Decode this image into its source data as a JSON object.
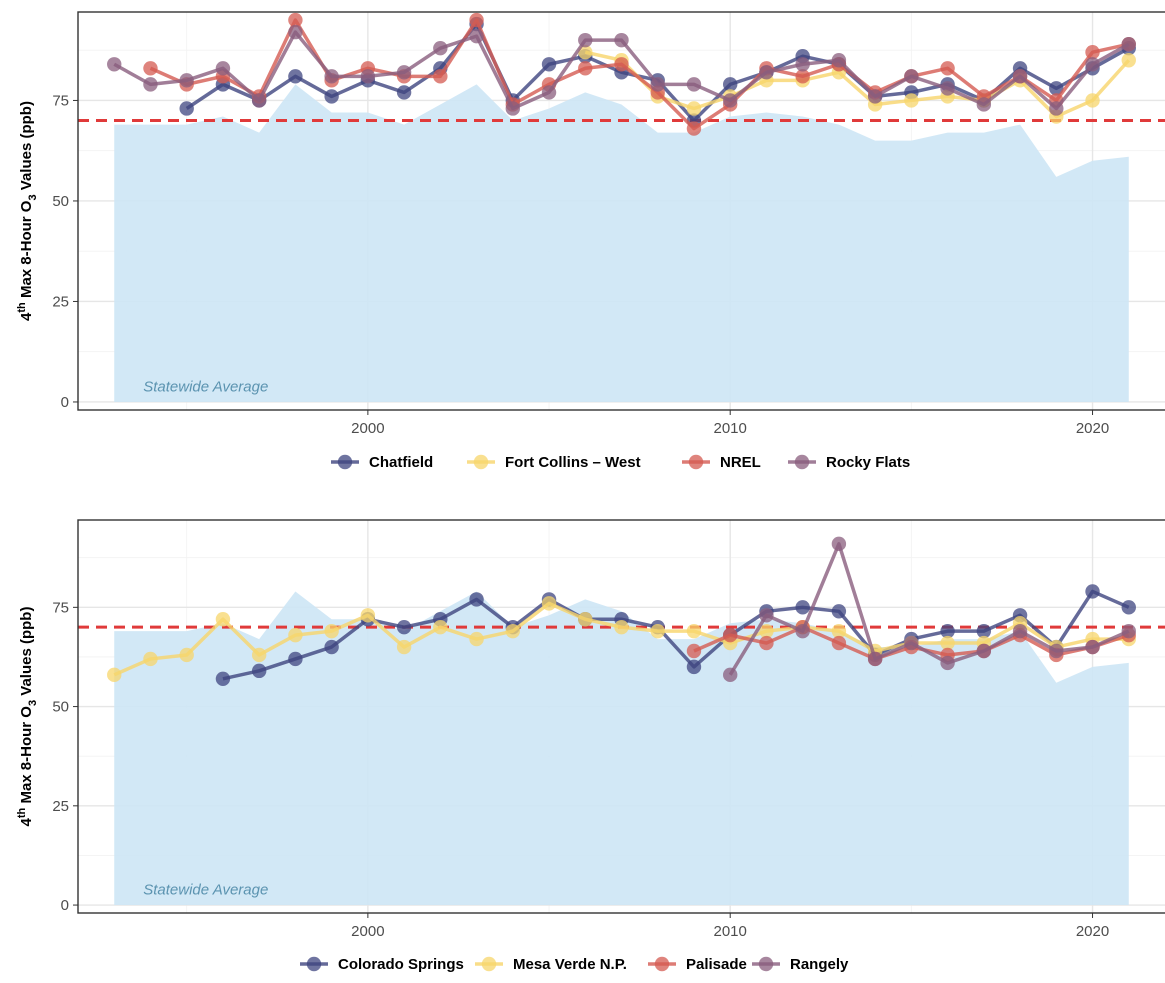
{
  "chart_data": [
    {
      "type": "line",
      "ylabel": {
        "prefix": "4",
        "sup": "th",
        "mid": " Max 8-Hour O",
        "sub": "3",
        "suffix": " Values (ppb)"
      },
      "xlabel": "",
      "xlim": [
        1992,
        2022
      ],
      "ylim": [
        -2,
        97
      ],
      "x_ticks": [
        2000,
        2010,
        2020
      ],
      "y_ticks": [
        0,
        25,
        50,
        75
      ],
      "standard_line": 70,
      "area": {
        "label": "Statewide Average",
        "color": "#cde6f5",
        "x": [
          1993,
          1994,
          1995,
          1996,
          1997,
          1998,
          1999,
          2000,
          2001,
          2002,
          2003,
          2004,
          2005,
          2006,
          2007,
          2008,
          2009,
          2010,
          2011,
          2012,
          2013,
          2014,
          2015,
          2016,
          2017,
          2018,
          2019,
          2020,
          2021
        ],
        "values": [
          69,
          69,
          69,
          71,
          67,
          79,
          72,
          72,
          69,
          74,
          79,
          70,
          73,
          77,
          74,
          67,
          67,
          71,
          72,
          71,
          69,
          65,
          65,
          67,
          67,
          69,
          56,
          60,
          61
        ]
      },
      "series": [
        {
          "name": "Chatfield",
          "color": "#3f4580",
          "x": [
            1995,
            1996,
            1997,
            1998,
            1999,
            2000,
            2001,
            2002,
            2003,
            2004,
            2005,
            2006,
            2007,
            2008,
            2009,
            2010,
            2011,
            2012,
            2013,
            2014,
            2015,
            2016,
            2017,
            2018,
            2019,
            2020,
            2021
          ],
          "values": [
            73,
            79,
            75,
            81,
            76,
            80,
            77,
            83,
            94,
            75,
            84,
            86,
            82,
            80,
            70,
            79,
            82,
            86,
            84,
            76,
            77,
            79,
            75,
            83,
            78,
            83,
            88
          ]
        },
        {
          "name": "Fort Collins – West",
          "color": "#f7d56b",
          "x": [
            2006,
            2007,
            2008,
            2009,
            2010,
            2011,
            2012,
            2013,
            2014,
            2015,
            2016,
            2017,
            2018,
            2019,
            2020,
            2021
          ],
          "values": [
            87,
            85,
            76,
            73,
            76,
            80,
            80,
            82,
            74,
            75,
            76,
            75,
            80,
            71,
            75,
            85
          ]
        },
        {
          "name": "NREL",
          "color": "#d45b52",
          "x": [
            1994,
            1995,
            1996,
            1997,
            1998,
            1999,
            2000,
            2001,
            2002,
            2003,
            2004,
            2005,
            2006,
            2007,
            2008,
            2009,
            2010,
            2011,
            2012,
            2013,
            2014,
            2015,
            2016,
            2017,
            2018,
            2019,
            2020,
            2021
          ],
          "values": [
            83,
            79,
            81,
            76,
            95,
            80,
            83,
            81,
            81,
            95,
            74,
            79,
            83,
            84,
            77,
            68,
            74,
            83,
            81,
            84,
            77,
            81,
            83,
            76,
            81,
            75,
            87,
            89
          ]
        },
        {
          "name": "Rocky Flats",
          "color": "#8a5e7e",
          "x": [
            1993,
            1994,
            1995,
            1996,
            1997,
            1998,
            1999,
            2000,
            2001,
            2002,
            2003,
            2004,
            2005,
            2006,
            2007,
            2008,
            2009,
            2010,
            2011,
            2012,
            2013,
            2014,
            2015,
            2016,
            2017,
            2018,
            2019,
            2020,
            2021
          ],
          "values": [
            84,
            79,
            80,
            83,
            75,
            92,
            81,
            81,
            82,
            88,
            91,
            73,
            77,
            90,
            90,
            79,
            79,
            75,
            82,
            84,
            85,
            76,
            81,
            78,
            74,
            81,
            73,
            84,
            89
          ]
        }
      ]
    },
    {
      "type": "line",
      "ylabel": {
        "prefix": "4",
        "sup": "th",
        "mid": " Max 8-Hour O",
        "sub": "3",
        "suffix": " Values (ppb)"
      },
      "xlabel": "",
      "xlim": [
        1992,
        2022
      ],
      "ylim": [
        -2,
        97
      ],
      "x_ticks": [
        2000,
        2010,
        2020
      ],
      "y_ticks": [
        0,
        25,
        50,
        75
      ],
      "standard_line": 70,
      "area": {
        "label": "Statewide Average",
        "color": "#cde6f5",
        "x": [
          1993,
          1994,
          1995,
          1996,
          1997,
          1998,
          1999,
          2000,
          2001,
          2002,
          2003,
          2004,
          2005,
          2006,
          2007,
          2008,
          2009,
          2010,
          2011,
          2012,
          2013,
          2014,
          2015,
          2016,
          2017,
          2018,
          2019,
          2020,
          2021
        ],
        "values": [
          69,
          69,
          69,
          71,
          67,
          79,
          72,
          72,
          69,
          74,
          79,
          70,
          73,
          77,
          74,
          67,
          67,
          71,
          72,
          71,
          69,
          65,
          65,
          67,
          67,
          69,
          56,
          60,
          61
        ]
      },
      "series": [
        {
          "name": "Colorado Springs",
          "color": "#3f4580",
          "x": [
            1996,
            1997,
            1998,
            1999,
            2000,
            2001,
            2002,
            2003,
            2004,
            2005,
            2006,
            2007,
            2008,
            2009,
            2010,
            2011,
            2012,
            2013,
            2014,
            2015,
            2016,
            2017,
            2018,
            2019,
            2020,
            2021
          ],
          "values": [
            57,
            59,
            62,
            65,
            72,
            70,
            72,
            77,
            70,
            77,
            72,
            72,
            70,
            60,
            68,
            74,
            75,
            74,
            63,
            67,
            69,
            69,
            73,
            65,
            79,
            75
          ]
        },
        {
          "name": "Mesa Verde N.P.",
          "color": "#f7d56b",
          "x": [
            1993,
            1994,
            1995,
            1996,
            1997,
            1998,
            1999,
            2000,
            2001,
            2002,
            2003,
            2004,
            2005,
            2006,
            2007,
            2008,
            2009,
            2010,
            2011,
            2012,
            2013,
            2014,
            2015,
            2016,
            2017,
            2018,
            2019,
            2020,
            2021
          ],
          "values": [
            58,
            62,
            63,
            72,
            63,
            68,
            69,
            73,
            65,
            70,
            67,
            69,
            76,
            72,
            70,
            69,
            69,
            66,
            69,
            70,
            69,
            64,
            66,
            66,
            66,
            71,
            65,
            67,
            67
          ]
        },
        {
          "name": "Palisade",
          "color": "#d45b52",
          "x": [
            2009,
            2010,
            2011,
            2012,
            2013,
            2014,
            2015,
            2016,
            2017,
            2018,
            2019,
            2020,
            2021
          ],
          "values": [
            64,
            68,
            66,
            70,
            66,
            62,
            65,
            63,
            64,
            68,
            63,
            65,
            68
          ]
        },
        {
          "name": "Rangely",
          "color": "#8a5e7e",
          "x": [
            2010,
            2011,
            2012,
            2013,
            2014,
            2015,
            2016,
            2017,
            2018,
            2019,
            2020,
            2021
          ],
          "values": [
            58,
            73,
            69,
            91,
            62,
            66,
            61,
            64,
            69,
            64,
            65,
            69
          ]
        }
      ]
    }
  ]
}
